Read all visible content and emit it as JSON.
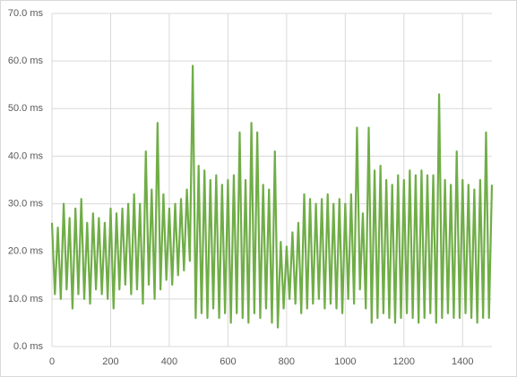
{
  "chart_data": {
    "type": "line",
    "x": [
      0,
      10,
      20,
      30,
      40,
      50,
      60,
      70,
      80,
      90,
      100,
      110,
      120,
      130,
      140,
      150,
      160,
      170,
      180,
      190,
      200,
      210,
      220,
      230,
      240,
      250,
      260,
      270,
      280,
      290,
      300,
      310,
      320,
      330,
      340,
      350,
      360,
      370,
      380,
      390,
      400,
      410,
      420,
      430,
      440,
      450,
      460,
      470,
      480,
      490,
      500,
      510,
      520,
      530,
      540,
      550,
      560,
      570,
      580,
      590,
      600,
      610,
      620,
      630,
      640,
      650,
      660,
      670,
      680,
      690,
      700,
      710,
      720,
      730,
      740,
      750,
      760,
      770,
      780,
      790,
      800,
      810,
      820,
      830,
      840,
      850,
      860,
      870,
      880,
      890,
      900,
      910,
      920,
      930,
      940,
      950,
      960,
      970,
      980,
      990,
      1000,
      1010,
      1020,
      1030,
      1040,
      1050,
      1060,
      1070,
      1080,
      1090,
      1100,
      1110,
      1120,
      1130,
      1140,
      1150,
      1160,
      1170,
      1180,
      1190,
      1200,
      1210,
      1220,
      1230,
      1240,
      1250,
      1260,
      1270,
      1280,
      1290,
      1300,
      1310,
      1320,
      1330,
      1340,
      1350,
      1360,
      1370,
      1380,
      1390,
      1400,
      1410,
      1420,
      1430,
      1440,
      1450,
      1460,
      1470,
      1480,
      1490,
      1500
    ],
    "series": [
      {
        "color": "#70ad47",
        "values": [
          26,
          11,
          25,
          10,
          30,
          12,
          27,
          8,
          29,
          11,
          31,
          10,
          26,
          9,
          28,
          12,
          27,
          11,
          26,
          10,
          29,
          8,
          28,
          12,
          29,
          13,
          30,
          11,
          32,
          12,
          30,
          9,
          41,
          13,
          33,
          10,
          47,
          12,
          32,
          14,
          29,
          13,
          30,
          15,
          31,
          16,
          33,
          18,
          59,
          6,
          38,
          7,
          37,
          6,
          35,
          8,
          36,
          6,
          34,
          7,
          35,
          5,
          36,
          7,
          45,
          6,
          35,
          5,
          47,
          7,
          45,
          6,
          34,
          8,
          33,
          5,
          41,
          4,
          22,
          8,
          21,
          10,
          24,
          9,
          26,
          7,
          32,
          8,
          31,
          9,
          30,
          10,
          31,
          8,
          32,
          9,
          30,
          8,
          31,
          7,
          30,
          10,
          32,
          9,
          46,
          12,
          28,
          8,
          46,
          5,
          37,
          6,
          38,
          7,
          35,
          6,
          34,
          5,
          36,
          6,
          35,
          7,
          37,
          6,
          36,
          5,
          37,
          6,
          36,
          7,
          36,
          5,
          53,
          6,
          35,
          7,
          34,
          6,
          41,
          6,
          35,
          7,
          34,
          6,
          33,
          5,
          35,
          6,
          45,
          6,
          34
        ]
      }
    ],
    "xlim": [
      0,
      1500
    ],
    "xticks": [
      0,
      200,
      400,
      600,
      800,
      1000,
      1200,
      1400
    ],
    "ylim": [
      0,
      70
    ],
    "yticks": [
      {
        "value": 0,
        "label": "0.0 ms"
      },
      {
        "value": 10,
        "label": "10.0 ms"
      },
      {
        "value": 20,
        "label": "20.0 ms"
      },
      {
        "value": 30,
        "label": "30.0 ms"
      },
      {
        "value": 40,
        "label": "40.0 ms"
      },
      {
        "value": 50,
        "label": "50.0 ms"
      },
      {
        "value": 60,
        "label": "60.0 ms"
      },
      {
        "value": 70,
        "label": "70.0 ms"
      }
    ],
    "grid": true
  }
}
